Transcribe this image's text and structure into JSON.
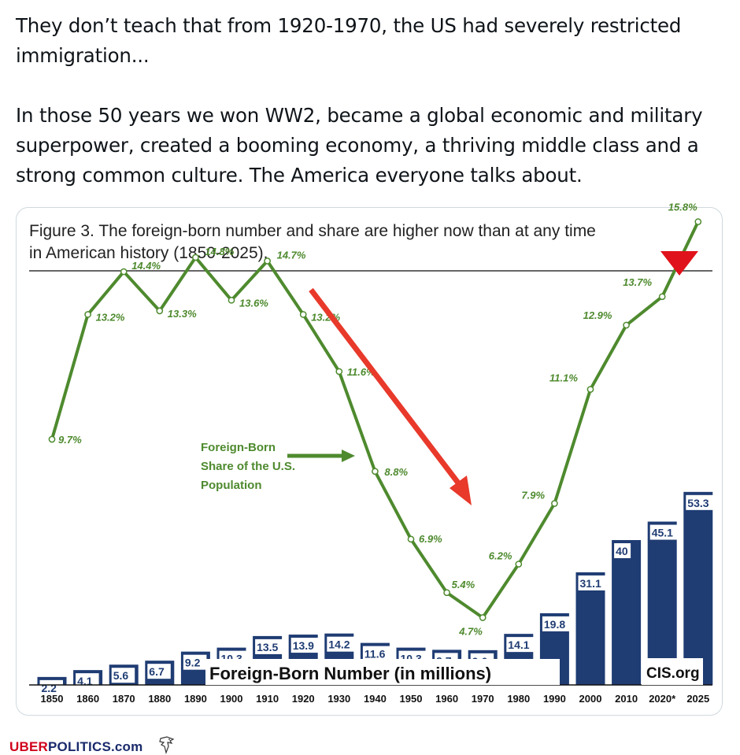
{
  "tweet": {
    "paragraph1": "They don’t teach that from 1920-1970, the US had severely restricted immigration...",
    "paragraph2": "In those 50 years we won WW2, became a global economic and military superpower, created a booming economy, a thriving middle class and a strong common culture. The America everyone talks about."
  },
  "chart_data": {
    "type": "bar",
    "title": "Figure 3. The foreign-born number and share are higher now than at any time in American history (1850-2025).",
    "categories": [
      "1850",
      "1860",
      "1870",
      "1880",
      "1890",
      "1900",
      "1910",
      "1920",
      "1930",
      "1940",
      "1950",
      "1960",
      "1970",
      "1980",
      "1990",
      "2000",
      "2010",
      "2020*",
      "2025"
    ],
    "series": [
      {
        "name": "Foreign-Born Number (in millions)",
        "type": "bar",
        "values": [
          2.2,
          4.1,
          5.6,
          6.7,
          9.2,
          10.3,
          13.5,
          13.9,
          14.2,
          11.6,
          10.3,
          9.7,
          9.6,
          14.1,
          19.8,
          31.1,
          40,
          45.1,
          53.3
        ],
        "color": "#1f3c73"
      },
      {
        "name": "Foreign-Born Share of the U.S. Population",
        "type": "line",
        "values": [
          9.7,
          13.2,
          14.4,
          13.3,
          14.8,
          13.6,
          14.7,
          13.2,
          11.6,
          8.8,
          6.9,
          5.4,
          4.7,
          6.2,
          7.9,
          11.1,
          12.9,
          13.7,
          15.8
        ],
        "labels": [
          "9.7%",
          "13.2%",
          "14.4%",
          "13.3%",
          "14.8%",
          "13.6%",
          "14.7%",
          "13.2%",
          "11.6%",
          "8.8%",
          "6.9%",
          "5.4%",
          "4.7%",
          "6.2%",
          "7.9%",
          "11.1%",
          "12.9%",
          "13.7%",
          "15.8%"
        ],
        "color": "#4e8a2e"
      }
    ],
    "line_label_lines": [
      "Foreign-Born",
      "Share of the U.S.",
      "Population"
    ],
    "bar_label": "Foreign-Born Number (in millions)",
    "source": "CIS.org",
    "colors": {
      "bar": "#1f3c73",
      "line": "#4e8a2e",
      "arrow_red": "#e8392b",
      "marker_red": "#e0121b"
    }
  },
  "footer": {
    "brand_red": "UBER",
    "brand_rest": "POLITICS.com"
  }
}
